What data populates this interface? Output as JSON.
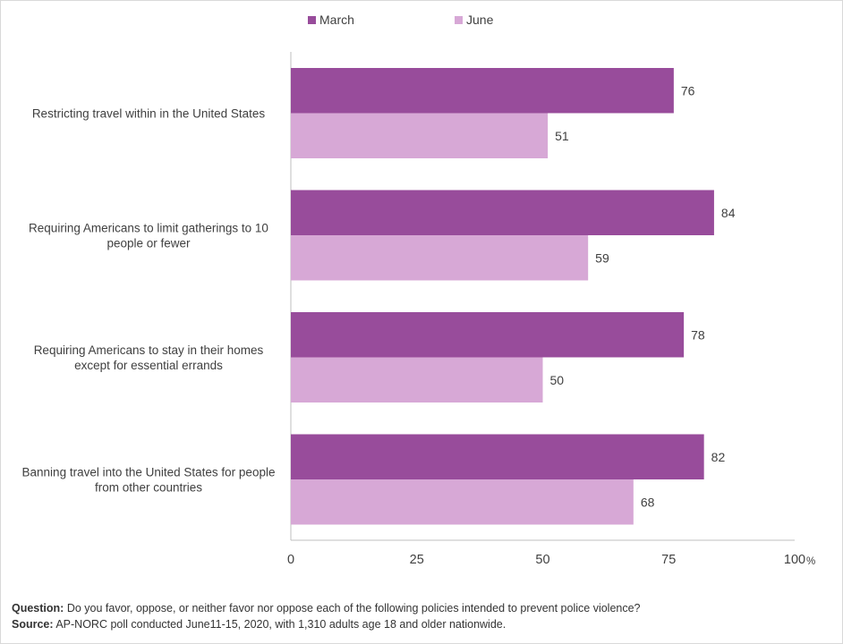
{
  "chart_data": {
    "type": "bar",
    "orientation": "horizontal",
    "categories": [
      "Restricting travel within in the United States",
      "Requiring Americans to limit gatherings to 10 people or fewer",
      "Requiring Americans to stay in their homes except for essential errands",
      "Banning travel into the United States for people from other countries"
    ],
    "category_lines": [
      [
        "Restricting travel within in the United States"
      ],
      [
        "Requiring Americans to limit gatherings to 10",
        "people or fewer"
      ],
      [
        "Requiring Americans to stay in their homes",
        "except for essential errands"
      ],
      [
        "Banning travel into the United States for people",
        "from other countries"
      ]
    ],
    "series": [
      {
        "name": "March",
        "values": [
          76,
          84,
          78,
          82
        ],
        "color": "#984c9b"
      },
      {
        "name": "June",
        "values": [
          51,
          59,
          50,
          68
        ],
        "color": "#d7a8d6"
      }
    ],
    "xlim": [
      0,
      100
    ],
    "x_ticks": [
      "0",
      "25",
      "50",
      "75",
      "100"
    ],
    "x_unit": "%",
    "legend_position": "top",
    "grid": false
  },
  "footer": {
    "question_label": "Question:",
    "question_text": " Do you favor, oppose, or neither favor nor oppose each of the following policies intended to prevent police violence?",
    "source_label": "Source:",
    "source_text": " AP-NORC poll conducted June11-15, 2020, with 1,310 adults age 18 and older nationwide."
  }
}
